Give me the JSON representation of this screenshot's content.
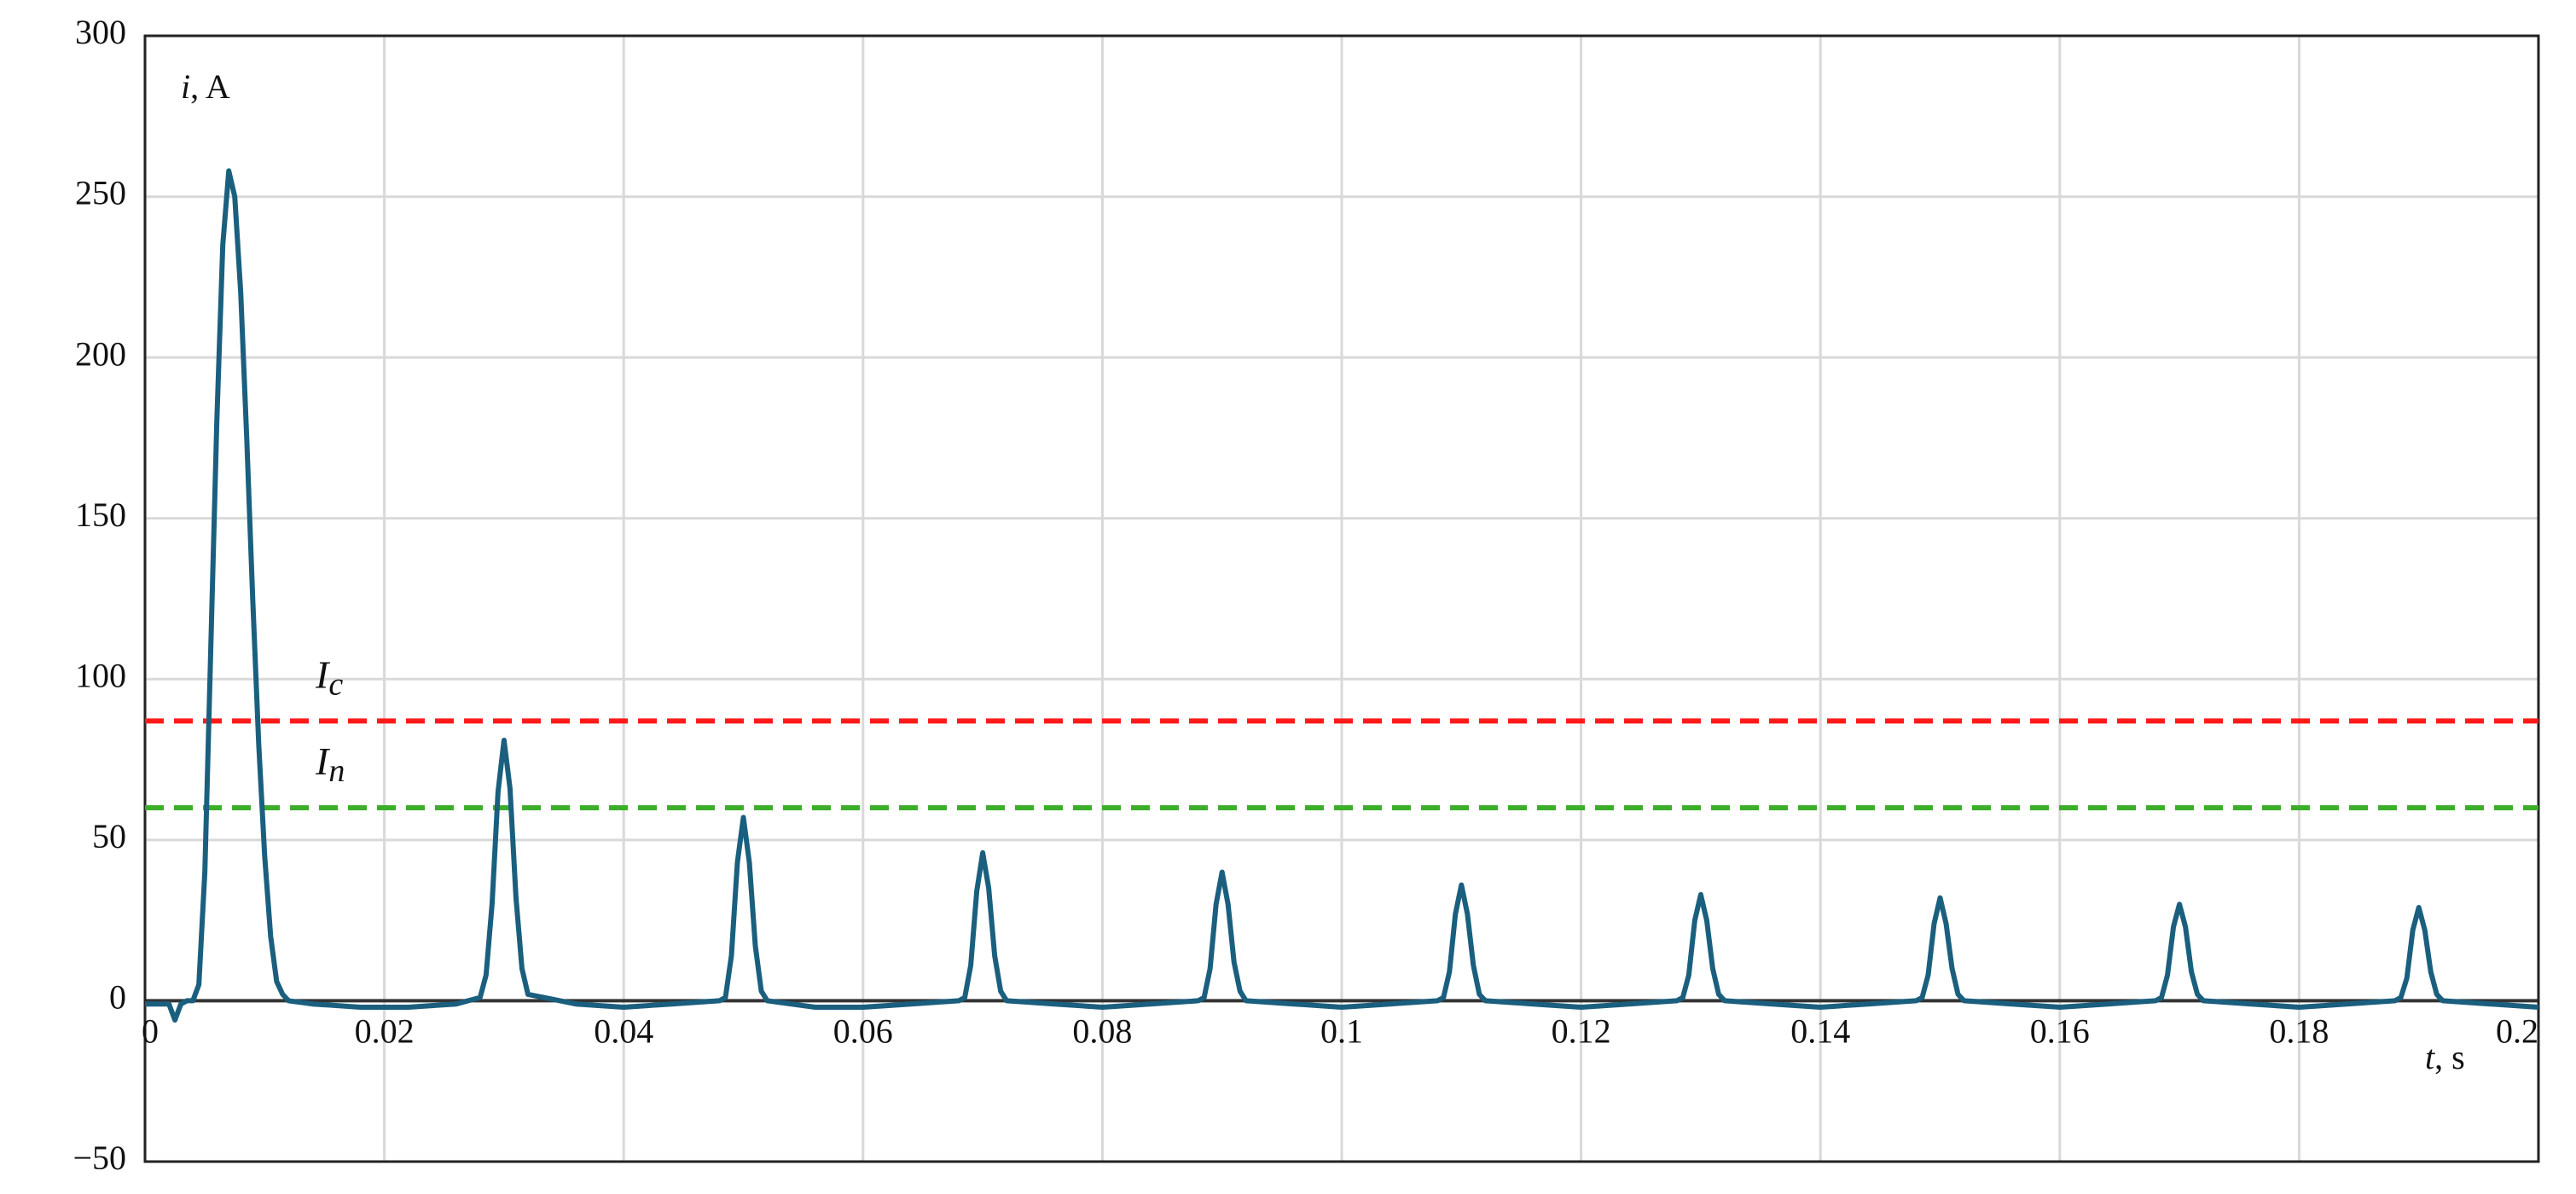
{
  "chart_data": {
    "type": "line",
    "xlabel": {
      "symbol": "t",
      "unit": ", s"
    },
    "ylabel": {
      "symbol": "i",
      "unit": ", A"
    },
    "xlim": [
      0,
      0.2
    ],
    "ylim": [
      -50,
      300
    ],
    "xticks": [
      0,
      0.02,
      0.04,
      0.06,
      0.08,
      0.1,
      0.12,
      0.14,
      0.16,
      0.18,
      0.2
    ],
    "yticks": [
      {
        "value": -50,
        "label": "−50"
      },
      0,
      50,
      100,
      150,
      200,
      250,
      300
    ],
    "grid": true,
    "reference_lines": [
      {
        "symbol": "I",
        "subscript": "c",
        "value": 87,
        "color": "#ff1a1a"
      },
      {
        "symbol": "I",
        "subscript": "n",
        "value": 60,
        "color": "#3cae2a"
      }
    ],
    "series": [
      {
        "color": "#1b5f7e",
        "x": [
          0,
          0.002,
          0.0025,
          0.003,
          0.0035,
          0.004,
          0.0045,
          0.005,
          0.0055,
          0.006,
          0.0065,
          0.007,
          0.0075,
          0.008,
          0.0085,
          0.009,
          0.0095,
          0.01,
          0.0105,
          0.011,
          0.0115,
          0.012,
          0.014,
          0.018,
          0.022,
          0.026,
          0.028,
          0.0285,
          0.029,
          0.0295,
          0.03,
          0.0305,
          0.031,
          0.0315,
          0.032,
          0.036,
          0.04,
          0.044,
          0.048,
          0.0485,
          0.049,
          0.0495,
          0.05,
          0.0505,
          0.051,
          0.0515,
          0.052,
          0.056,
          0.06,
          0.064,
          0.068,
          0.0685,
          0.069,
          0.0695,
          0.07,
          0.0705,
          0.071,
          0.0715,
          0.072,
          0.076,
          0.08,
          0.084,
          0.088,
          0.0885,
          0.089,
          0.0895,
          0.09,
          0.0905,
          0.091,
          0.0915,
          0.092,
          0.096,
          0.1,
          0.104,
          0.108,
          0.1085,
          0.109,
          0.1095,
          0.11,
          0.1105,
          0.111,
          0.1115,
          0.112,
          0.116,
          0.12,
          0.124,
          0.128,
          0.1285,
          0.129,
          0.1295,
          0.13,
          0.1305,
          0.131,
          0.1315,
          0.132,
          0.136,
          0.14,
          0.144,
          0.148,
          0.1485,
          0.149,
          0.1495,
          0.15,
          0.1505,
          0.151,
          0.1515,
          0.152,
          0.156,
          0.16,
          0.164,
          0.168,
          0.1685,
          0.169,
          0.1695,
          0.17,
          0.1705,
          0.171,
          0.1715,
          0.172,
          0.176,
          0.18,
          0.184,
          0.188,
          0.1885,
          0.189,
          0.1895,
          0.19,
          0.1905,
          0.191,
          0.1915,
          0.192,
          0.196,
          0.2
        ],
        "values": [
          -1,
          -1,
          -6,
          -1,
          0,
          0,
          5,
          40,
          110,
          180,
          235,
          258,
          250,
          220,
          175,
          125,
          80,
          45,
          20,
          6,
          2,
          0,
          -1,
          -2,
          -2,
          -1,
          1,
          8,
          30,
          65,
          81,
          66,
          32,
          10,
          2,
          -1,
          -2,
          -1,
          0,
          1,
          14,
          43,
          57,
          43,
          17,
          3,
          0,
          -2,
          -2,
          -1,
          0,
          1,
          11,
          34,
          46,
          35,
          14,
          3,
          0,
          -1,
          -2,
          -1,
          0,
          1,
          10,
          30,
          40,
          30,
          12,
          3,
          0,
          -1,
          -2,
          -1,
          0,
          1,
          9,
          27,
          36,
          27,
          11,
          2,
          0,
          -1,
          -2,
          -1,
          0,
          1,
          8,
          25,
          33,
          25,
          10,
          2,
          0,
          -1,
          -2,
          -1,
          0,
          1,
          8,
          24,
          32,
          24,
          10,
          2,
          0,
          -1,
          -2,
          -1,
          0,
          1,
          8,
          23,
          30,
          23,
          9,
          2,
          0,
          -1,
          -2,
          -1,
          0,
          1,
          7,
          22,
          29,
          22,
          9,
          2,
          0,
          -1,
          -2
        ]
      }
    ]
  }
}
